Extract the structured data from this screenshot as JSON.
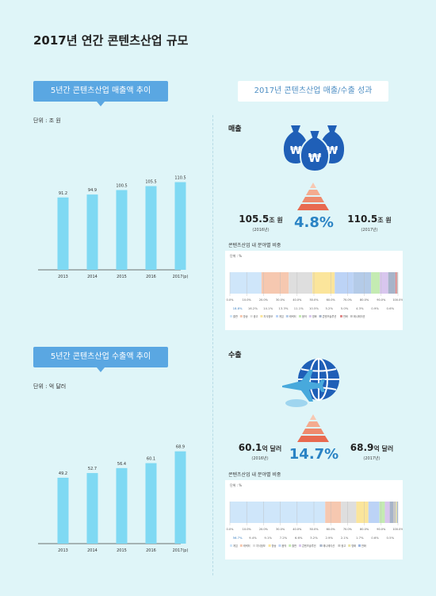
{
  "page_title": "2017년 연간 콘텐츠산업 규모",
  "left_top": {
    "header": "5년간 콘텐츠산업 매출액 추이",
    "unit": "단위 : 조 원"
  },
  "left_bottom": {
    "header": "5년간 콘텐츠산업 수출액 추이",
    "unit": "단위 : 억 달러"
  },
  "right_header": "2017년 콘텐츠산업 매출/수출 성과",
  "sales": {
    "label": "매출",
    "prev_value": "105.5",
    "prev_unit": "조 원",
    "prev_year": "(2016년)",
    "cur_value": "110.5",
    "cur_unit": "조 원",
    "cur_year": "(2017년)",
    "growth": "4.8%",
    "share_title": "콘텐츠산업 내 분야별 비중",
    "share_unit": "단위 : %"
  },
  "exports": {
    "label": "수출",
    "prev_value": "60.1",
    "prev_unit": "억 달러",
    "prev_year": "(2016년)",
    "cur_value": "68.9",
    "cur_unit": "억 달러",
    "cur_year": "(2017년)",
    "growth": "14.7%",
    "share_title": "콘텐츠산업 내 분야별 비중",
    "share_unit": "단위 : %"
  },
  "colors": {
    "bar": "#7fd9f3",
    "accent": "#5aa7e2",
    "pct": "#2a83c4"
  },
  "chart_data": [
    {
      "type": "bar",
      "categories": [
        "2013",
        "2014",
        "2015",
        "2016",
        "2017(p)"
      ],
      "values": [
        91.2,
        94.9,
        100.5,
        105.5,
        110.5
      ],
      "ylim": [
        0,
        130
      ]
    },
    {
      "type": "bar",
      "categories": [
        "2013",
        "2014",
        "2015",
        "2016",
        "2017(p)"
      ],
      "values": [
        49.2,
        52.7,
        56.4,
        60.1,
        68.9
      ],
      "ylim": [
        0,
        80
      ]
    },
    {
      "type": "bar",
      "orientation": "stacked-horizontal",
      "ticks": [
        "0.0%",
        "10.0%",
        "20.0%",
        "30.0%",
        "40.0%",
        "50.0%",
        "60.0%",
        "70.0%",
        "80.0%",
        "90.0%",
        "100.0%"
      ],
      "segments": [
        {
          "name": "출판",
          "value": 18.8,
          "color": "#cfe6fa"
        },
        {
          "name": "방송",
          "value": 16.2,
          "color": "#f6c8b0"
        },
        {
          "name": "광고",
          "value": 14.1,
          "color": "#dedede"
        },
        {
          "name": "지식정보",
          "value": 13.3,
          "color": "#fbe59b"
        },
        {
          "name": "게임",
          "value": 11.1,
          "color": "#bcd3f6"
        },
        {
          "name": "캐릭터",
          "value": 10.5,
          "color": "#b4cbe8"
        },
        {
          "name": "음악",
          "value": 5.2,
          "color": "#c4ebb2"
        },
        {
          "name": "영화",
          "value": 5.0,
          "color": "#d8c6ee"
        },
        {
          "name": "콘텐츠솔루션",
          "value": 4.3,
          "color": "#a7b4c9"
        },
        {
          "name": "만화",
          "value": 0.9,
          "color": "#e08a8a"
        },
        {
          "name": "애니메이션",
          "value": 0.6,
          "color": "#c6c6c6"
        }
      ],
      "label_values": [
        "18.8%",
        "16.2%",
        "14.1%",
        "13.3%",
        "11.1%",
        "10.5%",
        "5.2%",
        "5.0%",
        "4.3%",
        "0.9%",
        "0.6%"
      ]
    },
    {
      "type": "bar",
      "orientation": "stacked-horizontal",
      "ticks": [
        "0.0%",
        "10.0%",
        "20.0%",
        "30.0%",
        "40.0%",
        "50.0%",
        "60.0%",
        "70.0%",
        "80.0%",
        "90.0%",
        "100.0%"
      ],
      "segments": [
        {
          "name": "게임",
          "value": 56.7,
          "color": "#cfe6fa"
        },
        {
          "name": "캐릭터",
          "value": 9.4,
          "color": "#f6c8b0"
        },
        {
          "name": "지식정보",
          "value": 9.1,
          "color": "#dedede"
        },
        {
          "name": "방송",
          "value": 7.2,
          "color": "#fbe59b"
        },
        {
          "name": "음악",
          "value": 6.6,
          "color": "#bcd3f6"
        },
        {
          "name": "출판",
          "value": 3.2,
          "color": "#c4ebb2"
        },
        {
          "name": "콘텐츠솔루션",
          "value": 2.9,
          "color": "#d8c6ee"
        },
        {
          "name": "애니메이션",
          "value": 2.1,
          "color": "#a7b4c9"
        },
        {
          "name": "광고",
          "value": 1.7,
          "color": "#c6c6c6"
        },
        {
          "name": "영화",
          "value": 0.6,
          "color": "#e9e3a3"
        },
        {
          "name": "만화",
          "value": 0.5,
          "color": "#9bb5e0"
        }
      ],
      "label_values": [
        "56.7%",
        "9.4%",
        "9.1%",
        "7.2%",
        "6.6%",
        "3.2%",
        "2.9%",
        "2.1%",
        "1.7%",
        "0.6%",
        "0.5%"
      ]
    }
  ]
}
